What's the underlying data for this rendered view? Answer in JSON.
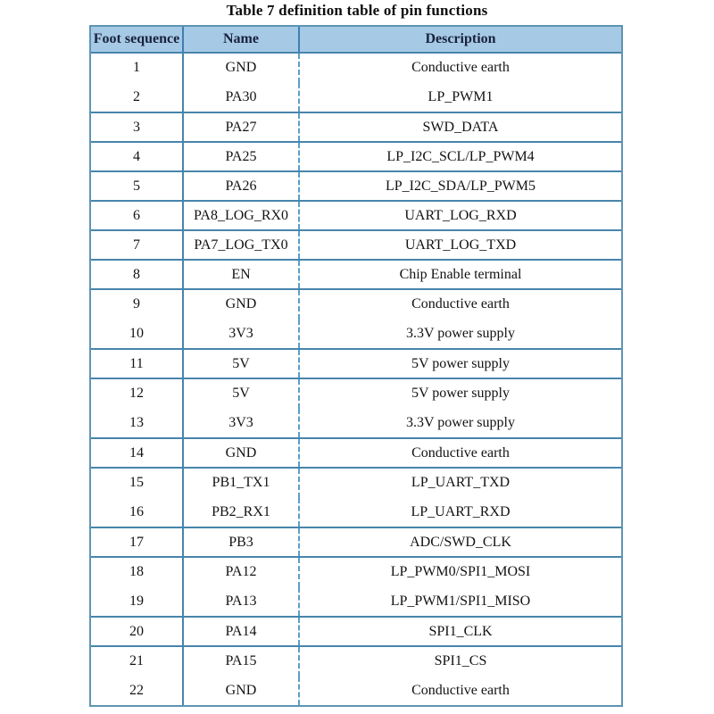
{
  "title": "Table 7 definition table of pin functions",
  "colors": {
    "header_bg": "#a6c9e6",
    "grid_line": "#4785ab",
    "outer_border": "#5e95b3",
    "dashed_separator": "#5b9fc7",
    "header_text": "#19233c",
    "body_text": "#131313"
  },
  "table": {
    "columns": [
      "Foot sequence",
      "Name",
      "Description"
    ],
    "groups": [
      {
        "rows": [
          {
            "foot_sequence": "1",
            "name": "GND",
            "description": "Conductive earth"
          },
          {
            "foot_sequence": "2",
            "name": "PA30",
            "description": "LP_PWM1"
          }
        ]
      },
      {
        "rows": [
          {
            "foot_sequence": "3",
            "name": "PA27",
            "description": "SWD_DATA"
          }
        ]
      },
      {
        "rows": [
          {
            "foot_sequence": "4",
            "name": "PA25",
            "description": "LP_I2C_SCL/LP_PWM4"
          }
        ]
      },
      {
        "rows": [
          {
            "foot_sequence": "5",
            "name": "PA26",
            "description": "LP_I2C_SDA/LP_PWM5"
          }
        ]
      },
      {
        "rows": [
          {
            "foot_sequence": "6",
            "name": "PA8_LOG_RX0",
            "description": "UART_LOG_RXD"
          }
        ]
      },
      {
        "rows": [
          {
            "foot_sequence": "7",
            "name": "PA7_LOG_TX0",
            "description": "UART_LOG_TXD"
          }
        ]
      },
      {
        "rows": [
          {
            "foot_sequence": "8",
            "name": "EN",
            "description": "Chip Enable terminal"
          }
        ]
      },
      {
        "rows": [
          {
            "foot_sequence": "9",
            "name": "GND",
            "description": "Conductive earth"
          },
          {
            "foot_sequence": "10",
            "name": "3V3",
            "description": "3.3V power supply"
          }
        ]
      },
      {
        "rows": [
          {
            "foot_sequence": "11",
            "name": "5V",
            "description": "5V power supply"
          }
        ]
      },
      {
        "rows": [
          {
            "foot_sequence": "12",
            "name": "5V",
            "description": "5V power supply"
          },
          {
            "foot_sequence": "13",
            "name": "3V3",
            "description": "3.3V power supply"
          }
        ]
      },
      {
        "rows": [
          {
            "foot_sequence": "14",
            "name": "GND",
            "description": "Conductive earth"
          }
        ]
      },
      {
        "rows": [
          {
            "foot_sequence": "15",
            "name": "PB1_TX1",
            "description": "LP_UART_TXD"
          },
          {
            "foot_sequence": "16",
            "name": "PB2_RX1",
            "description": "LP_UART_RXD"
          }
        ]
      },
      {
        "rows": [
          {
            "foot_sequence": "17",
            "name": "PB3",
            "description": "ADC/SWD_CLK"
          }
        ]
      },
      {
        "rows": [
          {
            "foot_sequence": "18",
            "name": "PA12",
            "description": "LP_PWM0/SPI1_MOSI"
          },
          {
            "foot_sequence": "19",
            "name": "PA13",
            "description": "LP_PWM1/SPI1_MISO"
          }
        ]
      },
      {
        "rows": [
          {
            "foot_sequence": "20",
            "name": "PA14",
            "description": "SPI1_CLK"
          }
        ]
      },
      {
        "rows": [
          {
            "foot_sequence": "21",
            "name": "PA15",
            "description": "SPI1_CS"
          },
          {
            "foot_sequence": "22",
            "name": "GND",
            "description": "Conductive earth"
          }
        ]
      }
    ]
  }
}
